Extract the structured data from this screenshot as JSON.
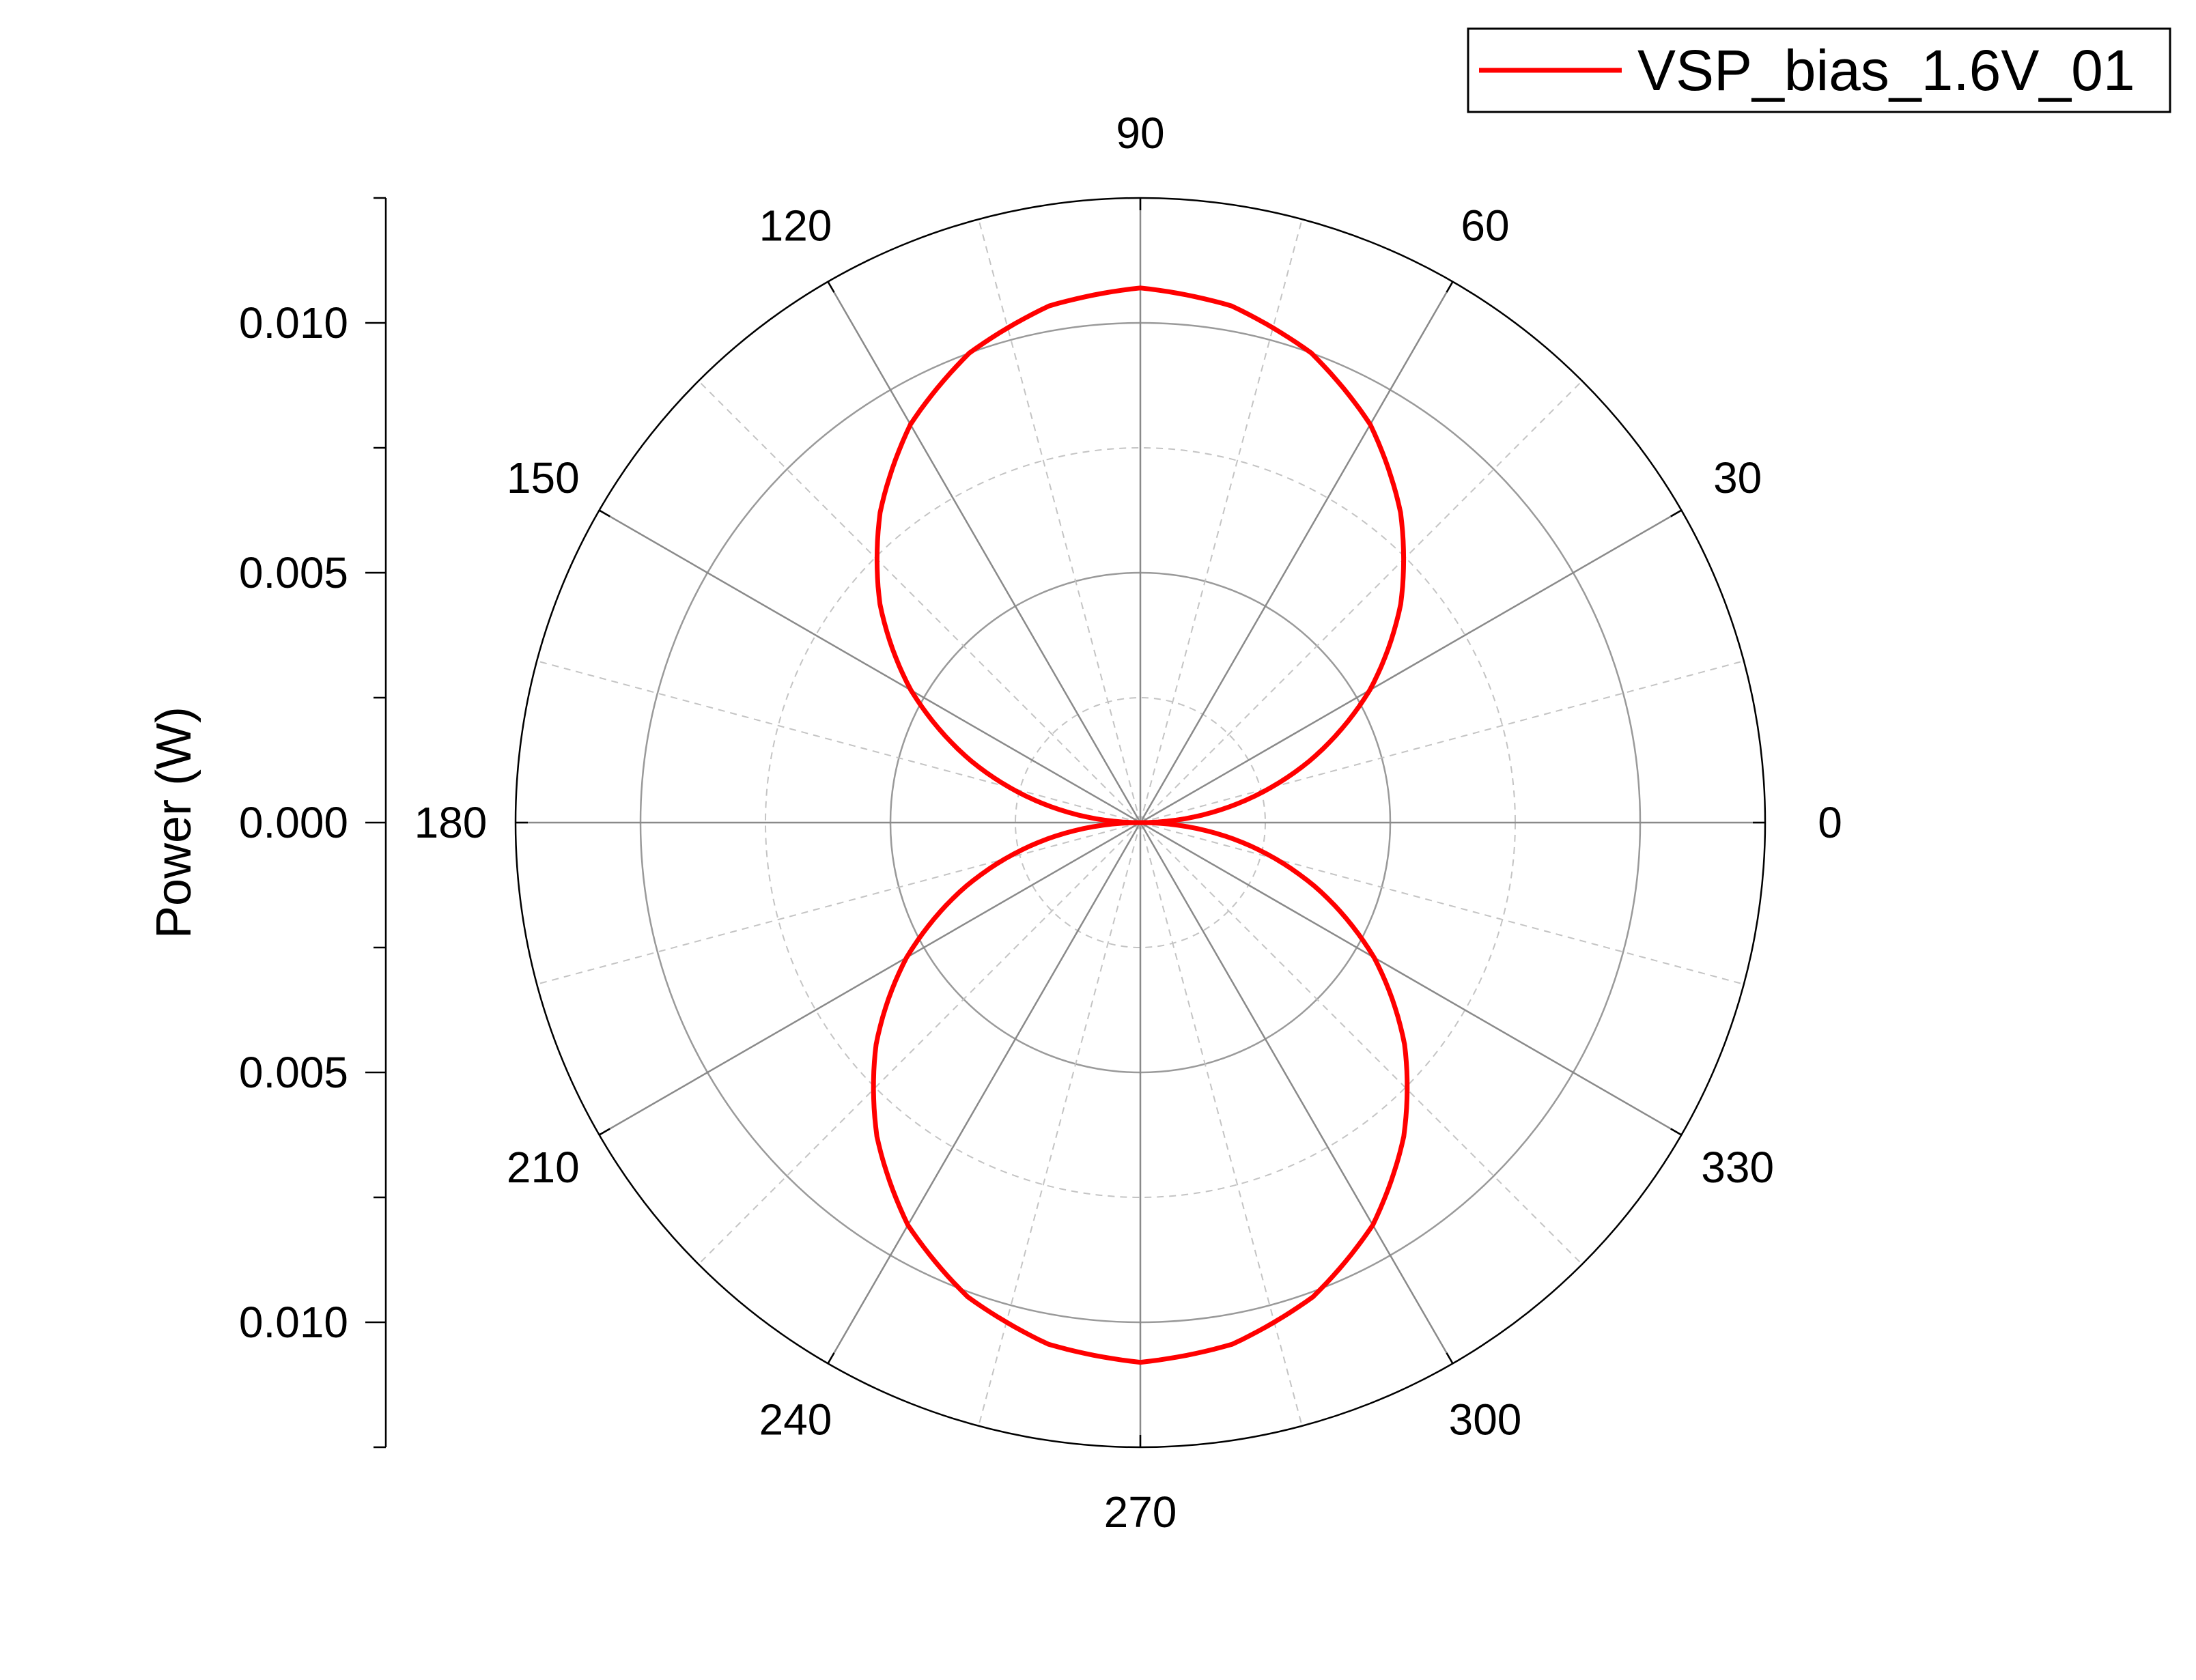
{
  "chart_data": {
    "type": "polar-line",
    "radial_axis": {
      "label": "Power (W)",
      "range": [
        0,
        0.0125
      ],
      "major_ticks": [
        0.0,
        0.005,
        0.01
      ],
      "tick_labels": [
        "0.000",
        "0.005",
        "0.010"
      ],
      "minor_tick_step": 0.0025
    },
    "angular_axis": {
      "unit": "degrees",
      "range": [
        0,
        360
      ],
      "major_ticks": [
        0,
        30,
        60,
        90,
        120,
        150,
        180,
        210,
        240,
        270,
        300,
        330
      ],
      "tick_labels": [
        "0",
        "30",
        "60",
        "90",
        "120",
        "150",
        "180",
        "210",
        "240",
        "270",
        "300",
        "330"
      ],
      "minor_step": 15
    },
    "grid": true,
    "legend": {
      "position": "top-right",
      "entries": [
        "VSP_bias_1.6V_01"
      ]
    },
    "series": [
      {
        "name": "VSP_bias_1.6V_01",
        "color": "#ff0000",
        "theta": [
          0,
          10,
          20,
          30,
          40,
          50,
          60,
          70,
          80,
          90,
          100,
          110,
          120,
          130,
          140,
          150,
          160,
          170,
          180,
          190,
          200,
          210,
          220,
          230,
          240,
          250,
          260,
          270,
          280,
          290,
          300,
          310,
          320,
          330,
          340,
          350,
          360
        ],
        "r": [
          0.0,
          0.0018,
          0.0036,
          0.0053,
          0.0068,
          0.0081,
          0.0092,
          0.01,
          0.0105,
          0.0107,
          0.0105,
          0.01,
          0.0092,
          0.0081,
          0.0068,
          0.0053,
          0.0036,
          0.0018,
          0.0,
          0.0019,
          0.0037,
          0.0054,
          0.0069,
          0.0082,
          0.0093,
          0.0101,
          0.0106,
          0.0108,
          0.0106,
          0.0101,
          0.0093,
          0.0082,
          0.0069,
          0.0054,
          0.0037,
          0.0019,
          0.0
        ]
      }
    ]
  }
}
